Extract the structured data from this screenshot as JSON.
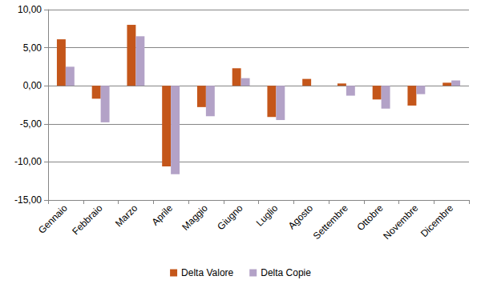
{
  "chart_data": {
    "type": "bar",
    "categories": [
      "Gennaio",
      "Febbraio",
      "Marzo",
      "Aprile",
      "Maggio",
      "Giugno",
      "Luglio",
      "Agosto",
      "Settembre",
      "Ottobre",
      "Novembre",
      "Dicembre"
    ],
    "series": [
      {
        "name": "Delta Valore",
        "color": "#c4561a",
        "values": [
          6.1,
          -1.7,
          8.0,
          -10.6,
          -2.8,
          2.3,
          -4.1,
          0.9,
          0.3,
          -1.8,
          -2.6,
          0.4
        ]
      },
      {
        "name": "Delta Copie",
        "color": "#b3a2c7",
        "values": [
          2.5,
          -4.8,
          6.5,
          -11.6,
          -4.0,
          1.0,
          -4.5,
          0.0,
          -1.3,
          -3.0,
          -1.1,
          0.7
        ]
      }
    ],
    "ylim": [
      -15,
      10
    ],
    "yticks": [
      {
        "value": -15,
        "label": "-15,00"
      },
      {
        "value": -10,
        "label": "-10,00"
      },
      {
        "value": -5,
        "label": "-5,00"
      },
      {
        "value": 0,
        "label": "0,00"
      },
      {
        "value": 5,
        "label": "5,00"
      },
      {
        "value": 10,
        "label": "10,00"
      }
    ],
    "grid": true,
    "legend": "bottom"
  }
}
